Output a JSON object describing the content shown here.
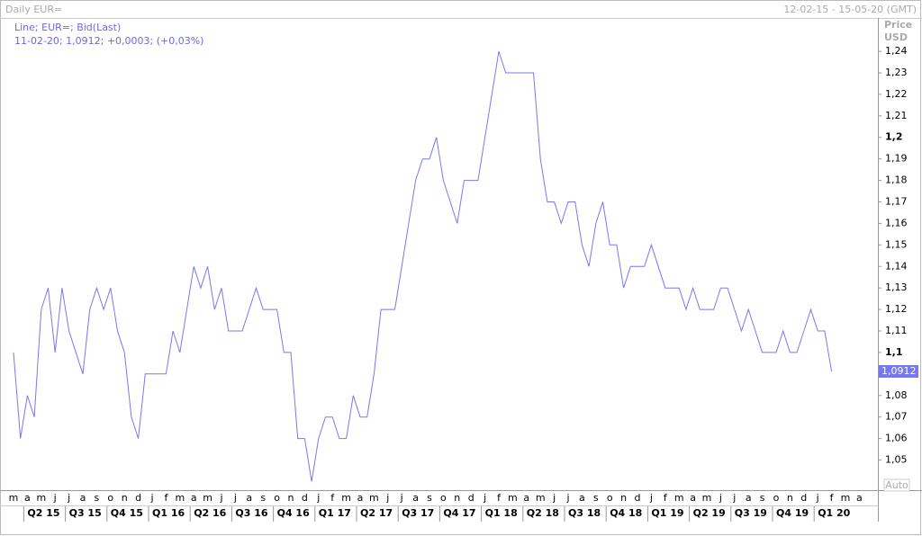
{
  "header": {
    "title": "Daily EUR=",
    "range": "12-02-15 - 15-05-20 (GMT)",
    "price": "Price",
    "currency": "USD",
    "auto": "Auto"
  },
  "chart_data": {
    "type": "line",
    "legend_title": "Line; EUR=; Bid(Last)",
    "legend_detail": "11-02-20; 1,0912; +0,0003; (+0,03%)",
    "last_label": "1,0912",
    "categories": [
      "m",
      null,
      "a",
      null,
      "m",
      null,
      "j",
      null,
      "j",
      null,
      "a",
      null,
      "s",
      null,
      "o",
      null,
      "n",
      null,
      "d",
      null,
      "j",
      null,
      "f",
      null,
      "m",
      null,
      "a",
      null,
      "m",
      null,
      "j",
      null,
      "j",
      null,
      "a",
      null,
      "s",
      null,
      "o",
      null,
      "n",
      null,
      "d",
      null,
      "j",
      null,
      "f",
      null,
      "m",
      null,
      "a",
      null,
      "m",
      null,
      "j",
      null,
      "j",
      null,
      "a",
      null,
      "s",
      null,
      "o",
      null,
      "n",
      null,
      "d",
      null,
      "j",
      null,
      "f",
      null,
      "m",
      null,
      "a",
      null,
      "m",
      null,
      "j",
      null,
      "j",
      null,
      "a",
      null,
      "s",
      null,
      "o",
      null,
      "n",
      null,
      "d",
      null,
      "j",
      null,
      "f",
      null,
      "m",
      null,
      "a",
      null,
      "m",
      null,
      "j",
      null,
      "j",
      null,
      "a",
      null,
      "s",
      null,
      "o",
      null,
      "n",
      null,
      "d",
      null,
      "j",
      null,
      "f",
      null,
      "m",
      null,
      "a",
      null
    ],
    "quarters": [
      "Q2 15",
      "Q3 15",
      "Q4 15",
      "Q1 16",
      "Q2 16",
      "Q3 16",
      "Q4 16",
      "Q1 17",
      "Q2 17",
      "Q3 17",
      "Q4 17",
      "Q1 18",
      "Q2 18",
      "Q3 18",
      "Q4 18",
      "Q1 19",
      "Q2 19",
      "Q3 19",
      "Q4 19",
      "Q1 20"
    ],
    "series": [
      {
        "name": "EUR=",
        "color": "#7878ee",
        "values": [
          1.1,
          1.06,
          1.08,
          1.07,
          1.12,
          1.13,
          1.1,
          1.13,
          1.11,
          1.1,
          1.09,
          1.12,
          1.13,
          1.12,
          1.13,
          1.11,
          1.1,
          1.07,
          1.06,
          1.09,
          1.09,
          1.09,
          1.09,
          1.11,
          1.1,
          1.12,
          1.14,
          1.13,
          1.14,
          1.12,
          1.13,
          1.11,
          1.11,
          1.11,
          1.12,
          1.13,
          1.12,
          1.12,
          1.12,
          1.1,
          1.1,
          1.06,
          1.06,
          1.04,
          1.06,
          1.07,
          1.07,
          1.06,
          1.06,
          1.08,
          1.07,
          1.07,
          1.09,
          1.12,
          1.12,
          1.12,
          1.14,
          1.16,
          1.18,
          1.19,
          1.19,
          1.2,
          1.18,
          1.17,
          1.16,
          1.18,
          1.18,
          1.18,
          1.2,
          1.22,
          1.24,
          1.23,
          1.23,
          1.23,
          1.23,
          1.23,
          1.19,
          1.17,
          1.17,
          1.16,
          1.17,
          1.17,
          1.15,
          1.14,
          1.16,
          1.17,
          1.15,
          1.15,
          1.13,
          1.14,
          1.14,
          1.14,
          1.15,
          1.14,
          1.13,
          1.13,
          1.13,
          1.12,
          1.13,
          1.12,
          1.12,
          1.12,
          1.13,
          1.13,
          1.12,
          1.11,
          1.12,
          1.11,
          1.1,
          1.1,
          1.1,
          1.11,
          1.1,
          1.1,
          1.11,
          1.12,
          1.11,
          1.11,
          1.0912,
          null,
          null,
          null,
          null,
          null
        ]
      }
    ],
    "ylim": [
      1.036,
      1.2555
    ],
    "yticks": [
      {
        "value": 1.05,
        "label": "1,05"
      },
      {
        "value": 1.06,
        "label": "1,06"
      },
      {
        "value": 1.07,
        "label": "1,07"
      },
      {
        "value": 1.08,
        "label": "1,08"
      },
      {
        "value": 1.09,
        "label": "1,09"
      },
      {
        "value": 1.1,
        "label": "1,1"
      },
      {
        "value": 1.11,
        "label": "1,11"
      },
      {
        "value": 1.12,
        "label": "1,12"
      },
      {
        "value": 1.13,
        "label": "1,13"
      },
      {
        "value": 1.14,
        "label": "1,14"
      },
      {
        "value": 1.15,
        "label": "1,15"
      },
      {
        "value": 1.16,
        "label": "1,16"
      },
      {
        "value": 1.17,
        "label": "1,17"
      },
      {
        "value": 1.18,
        "label": "1,18"
      },
      {
        "value": 1.19,
        "label": "1,19"
      },
      {
        "value": 1.2,
        "label": "1,2"
      },
      {
        "value": 1.21,
        "label": "1,21"
      },
      {
        "value": 1.22,
        "label": "1,22"
      },
      {
        "value": 1.23,
        "label": "1,23"
      },
      {
        "value": 1.24,
        "label": "1,24"
      }
    ],
    "bold_ticks": [
      1.1,
      1.2
    ]
  }
}
